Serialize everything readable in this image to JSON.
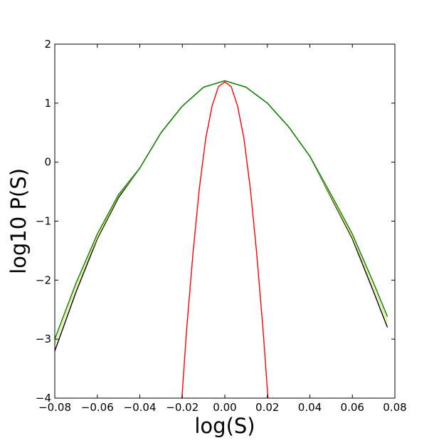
{
  "chart_data": {
    "type": "line",
    "title": "",
    "xlabel": "log(S)",
    "ylabel": "log10 P(S)",
    "xlim": [
      -0.08,
      0.08
    ],
    "ylim": [
      -4,
      2
    ],
    "xticks": [
      -0.08,
      -0.06,
      -0.04,
      -0.02,
      0.0,
      0.02,
      0.04,
      0.06,
      0.08
    ],
    "xtick_labels": [
      "−0.08",
      "−0.06",
      "−0.04",
      "−0.02",
      "0.00",
      "0.02",
      "0.04",
      "0.06",
      "0.08"
    ],
    "yticks": [
      -4,
      -3,
      -2,
      -1,
      0,
      1,
      2
    ],
    "ytick_labels": [
      "−4",
      "−3",
      "−2",
      "−1",
      "0",
      "1",
      "2"
    ],
    "grid": false,
    "legend": "none",
    "series": [
      {
        "color": "#000000",
        "x": [
          -0.08,
          -0.07,
          -0.06,
          -0.05,
          -0.04,
          -0.03,
          -0.02,
          -0.01,
          0.0,
          0.01,
          0.02,
          0.03,
          0.04,
          0.05,
          0.06,
          0.07,
          0.0765
        ],
        "y": [
          -3.2,
          -2.2,
          -1.3,
          -0.6,
          -0.1,
          0.5,
          0.95,
          1.27,
          1.38,
          1.27,
          1.0,
          0.6,
          0.1,
          -0.6,
          -1.3,
          -2.2,
          -2.8
        ]
      },
      {
        "color": "#e8e86a",
        "x": [
          -0.08,
          -0.07,
          -0.06,
          -0.05,
          -0.04,
          -0.03,
          -0.02,
          -0.01,
          0.0,
          0.01,
          0.02,
          0.03,
          0.04,
          0.05,
          0.06,
          0.07,
          0.0765
        ],
        "y": [
          -3.08,
          -2.12,
          -1.27,
          -0.57,
          -0.1,
          0.5,
          0.95,
          1.27,
          1.38,
          1.27,
          1.0,
          0.6,
          0.1,
          -0.58,
          -1.27,
          -2.12,
          -2.7
        ]
      },
      {
        "color": "#008000",
        "x": [
          -0.08,
          -0.07,
          -0.06,
          -0.05,
          -0.04,
          -0.03,
          -0.02,
          -0.01,
          0.0,
          0.01,
          0.02,
          0.03,
          0.04,
          0.05,
          0.06,
          0.07,
          0.0765
        ],
        "y": [
          -3.0,
          -2.05,
          -1.22,
          -0.55,
          -0.1,
          0.5,
          0.95,
          1.27,
          1.38,
          1.27,
          1.0,
          0.6,
          0.1,
          -0.55,
          -1.22,
          -2.05,
          -2.62
        ]
      },
      {
        "color": "#ff0000",
        "x": [
          -0.0202,
          -0.018,
          -0.015,
          -0.012,
          -0.009,
          -0.006,
          -0.003,
          0.0,
          0.003,
          0.006,
          0.009,
          0.012,
          0.015,
          0.018,
          0.0203
        ],
        "y": [
          -4.0,
          -2.85,
          -1.55,
          -0.45,
          0.4,
          0.95,
          1.28,
          1.36,
          1.28,
          0.95,
          0.4,
          -0.45,
          -1.55,
          -2.85,
          -4.0
        ]
      }
    ]
  }
}
